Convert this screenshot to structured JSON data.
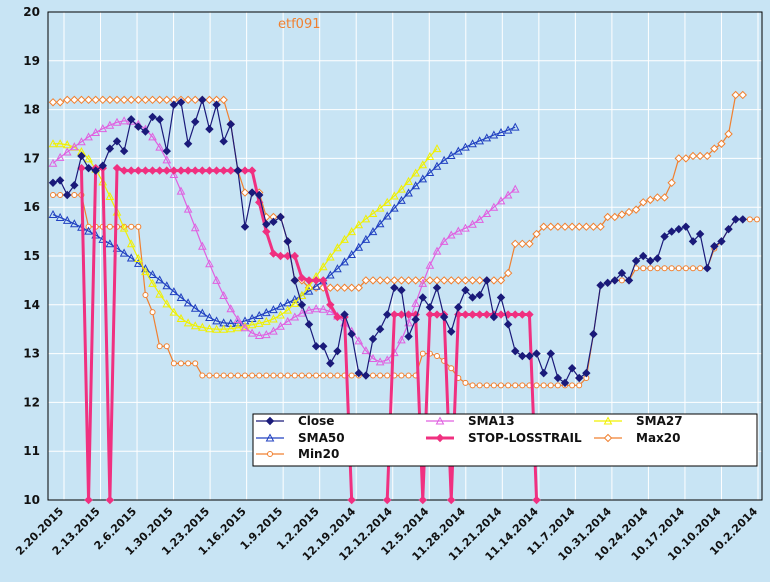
{
  "chart_data": {
    "type": "line",
    "title": "etf091",
    "ylim": [
      10,
      20
    ],
    "yticks": [
      "10",
      "11",
      "12",
      "13",
      "14",
      "15",
      "16",
      "17",
      "18",
      "19",
      "20"
    ],
    "xtick_labels": [
      "2.20.2015",
      "2.13.2015",
      "2.6.2015",
      "1.30.2015",
      "1.23.2015",
      "1.16.2015",
      "1.9.2015",
      "1.2.2015",
      "12.19.2014",
      "12.12.2014",
      "12.5.2014",
      "11.28.2014",
      "11.21.2014",
      "11.14.2014",
      "11.7.2014",
      "10.31.2014",
      "10.24.2014",
      "10.17.2014",
      "10.10.2014",
      "10.2.2014"
    ],
    "n_points": 100,
    "grid": true,
    "legend_position": "bottom-right",
    "series": [
      {
        "name": "Close",
        "color": "#1a1a7a",
        "marker": "diamond",
        "values": [
          16.5,
          16.55,
          16.25,
          16.45,
          17.05,
          16.8,
          16.75,
          16.85,
          17.2,
          17.35,
          17.15,
          17.8,
          17.65,
          17.55,
          17.85,
          17.8,
          17.15,
          18.1,
          18.15,
          17.3,
          17.75,
          18.2,
          17.6,
          18.1,
          17.35,
          17.7,
          16.75,
          15.6,
          16.3,
          16.25,
          15.65,
          15.7,
          15.8,
          15.3,
          14.5,
          14.0,
          13.6,
          13.15,
          13.15,
          12.8,
          13.05,
          13.8,
          13.4,
          12.6,
          12.55,
          13.3,
          13.5,
          13.8,
          14.35,
          14.3,
          13.35,
          13.7,
          14.15,
          13.95,
          14.35,
          13.75,
          13.45,
          13.95,
          14.3,
          14.15,
          14.2,
          14.5,
          13.75,
          14.15,
          13.6,
          13.05,
          12.95,
          12.95,
          13.0,
          12.6,
          13.0,
          12.5,
          12.4,
          12.7,
          12.5,
          12.6,
          13.4,
          14.4,
          14.45,
          14.5,
          14.65,
          14.5,
          14.9,
          15.0,
          14.9,
          14.95,
          15.4,
          15.5,
          15.55,
          15.6,
          15.3,
          15.45,
          14.75,
          15.2,
          15.3,
          15.55,
          15.75,
          15.75
        ]
      },
      {
        "name": "SMA13",
        "color": "#e060e0",
        "marker": "triangle",
        "values": [
          16.9,
          17.02,
          17.13,
          17.24,
          17.34,
          17.44,
          17.53,
          17.61,
          17.68,
          17.74,
          17.77,
          17.76,
          17.7,
          17.6,
          17.44,
          17.23,
          16.97,
          16.67,
          16.33,
          15.96,
          15.58,
          15.2,
          14.84,
          14.5,
          14.19,
          13.92,
          13.7,
          13.53,
          13.42,
          13.37,
          13.39,
          13.46,
          13.56,
          13.66,
          13.75,
          13.83,
          13.89,
          13.92,
          13.91,
          13.86,
          13.77,
          13.63,
          13.46,
          13.26,
          13.06,
          12.9,
          12.83,
          12.87,
          13.02,
          13.28,
          13.63,
          14.03,
          14.44,
          14.81,
          15.1,
          15.3,
          15.43,
          15.51,
          15.57,
          15.65,
          15.75,
          15.87,
          16.0,
          16.13,
          16.25,
          16.37
        ]
      },
      {
        "name": "SMA27",
        "color": "#f0f000",
        "marker": "triangle",
        "values": [
          17.3,
          17.3,
          17.28,
          17.23,
          17.14,
          16.99,
          16.78,
          16.52,
          16.22,
          15.9,
          15.57,
          15.25,
          14.95,
          14.68,
          14.44,
          14.22,
          14.02,
          13.85,
          13.72,
          13.63,
          13.57,
          13.54,
          13.51,
          13.5,
          13.5,
          13.51,
          13.53,
          13.56,
          13.59,
          13.62,
          13.66,
          13.71,
          13.79,
          13.89,
          14.03,
          14.19,
          14.38,
          14.58,
          14.78,
          14.98,
          15.17,
          15.34,
          15.5,
          15.64,
          15.76,
          15.87,
          15.98,
          16.1,
          16.23,
          16.37,
          16.53,
          16.7,
          16.87,
          17.04,
          17.2
        ]
      },
      {
        "name": "SMA50",
        "color": "#2040c0",
        "marker": "triangle",
        "values": [
          15.85,
          15.79,
          15.73,
          15.66,
          15.59,
          15.51,
          15.43,
          15.34,
          15.25,
          15.16,
          15.06,
          14.96,
          14.85,
          14.74,
          14.62,
          14.51,
          14.39,
          14.27,
          14.15,
          14.04,
          13.93,
          13.83,
          13.74,
          13.67,
          13.63,
          13.62,
          13.63,
          13.67,
          13.72,
          13.78,
          13.84,
          13.9,
          13.97,
          14.04,
          14.11,
          14.19,
          14.28,
          14.38,
          14.49,
          14.61,
          14.74,
          14.88,
          15.03,
          15.18,
          15.34,
          15.5,
          15.66,
          15.82,
          15.98,
          16.14,
          16.29,
          16.44,
          16.58,
          16.71,
          16.84,
          16.96,
          17.06,
          17.15,
          17.23,
          17.3,
          17.36,
          17.42,
          17.48,
          17.53,
          17.58,
          17.64
        ]
      },
      {
        "name": "Max20",
        "color": "#f08030",
        "marker": "diamond",
        "values": [
          18.15,
          18.15,
          18.2,
          18.2,
          18.2,
          18.2,
          18.2,
          18.2,
          18.2,
          18.2,
          18.2,
          18.2,
          18.2,
          18.2,
          18.2,
          18.2,
          18.2,
          18.2,
          18.2,
          18.2,
          18.2,
          18.2,
          18.2,
          18.2,
          18.2,
          17.7,
          16.75,
          16.3,
          16.3,
          16.3,
          15.8,
          15.8,
          15.8,
          15.3,
          14.5,
          14.5,
          14.35,
          14.35,
          14.35,
          14.35,
          14.35,
          14.35,
          14.35,
          14.35,
          14.5,
          14.5,
          14.5,
          14.5,
          14.5,
          14.5,
          14.5,
          14.5,
          14.5,
          14.5,
          14.5,
          14.5,
          14.5,
          14.5,
          14.5,
          14.5,
          14.5,
          14.5,
          14.5,
          14.5,
          14.65,
          15.25,
          15.25,
          15.25,
          15.45,
          15.6,
          15.6,
          15.6,
          15.6,
          15.6,
          15.6,
          15.6,
          15.6,
          15.6,
          15.8,
          15.8,
          15.85,
          15.9,
          15.95,
          16.1,
          16.15,
          16.2,
          16.2,
          16.5,
          17.0,
          17.0,
          17.05,
          17.05,
          17.05,
          17.2,
          17.3,
          17.5,
          18.3,
          18.3
        ]
      },
      {
        "name": "Min20",
        "color": "#f08030",
        "marker": "circle",
        "values": [
          16.25,
          16.25,
          16.25,
          16.25,
          16.25,
          15.6,
          15.6,
          15.6,
          15.6,
          15.6,
          15.6,
          15.6,
          15.6,
          14.2,
          13.85,
          13.15,
          13.15,
          12.8,
          12.8,
          12.8,
          12.8,
          12.55,
          12.55,
          12.55,
          12.55,
          12.55,
          12.55,
          12.55,
          12.55,
          12.55,
          12.55,
          12.55,
          12.55,
          12.55,
          12.55,
          12.55,
          12.55,
          12.55,
          12.55,
          12.55,
          12.55,
          12.55,
          12.55,
          12.55,
          12.55,
          12.55,
          12.55,
          12.55,
          12.55,
          12.55,
          12.55,
          12.55,
          13.0,
          13.0,
          12.95,
          12.85,
          12.7,
          12.5,
          12.4,
          12.35,
          12.35,
          12.35,
          12.35,
          12.35,
          12.35,
          12.35,
          12.35,
          12.35,
          12.35,
          12.35,
          12.35,
          12.35,
          12.35,
          12.35,
          12.35,
          12.5,
          13.4,
          14.4,
          14.45,
          14.5,
          14.5,
          14.5,
          14.75,
          14.75,
          14.75,
          14.75,
          14.75,
          14.75,
          14.75,
          14.75,
          14.75,
          14.75,
          14.75,
          15.15,
          15.3,
          15.55,
          15.75,
          15.75,
          15.75,
          15.75
        ]
      },
      {
        "name": "STOP-LOSSTRAIL",
        "color": "#f03080",
        "marker": "diamond",
        "segments": [
          {
            "start": 4,
            "values": [
              16.8,
              10,
              16.8,
              16.8,
              10,
              16.8,
              16.75,
              16.75,
              16.75,
              16.75,
              16.75,
              16.75,
              16.75,
              16.75,
              16.75,
              16.75,
              16.75,
              16.75,
              16.75,
              16.75,
              16.75,
              16.75,
              16.75,
              16.75,
              16.75,
              16.1,
              15.5,
              15.05,
              15.0,
              15.0,
              15.0,
              14.55,
              14.5,
              14.5,
              14.5,
              14.0,
              13.75,
              13.75,
              10
            ]
          },
          {
            "start": 47,
            "values": [
              10,
              13.8,
              13.8,
              13.8,
              13.8,
              10,
              13.8,
              13.8,
              13.8,
              10,
              13.8,
              13.8,
              13.8,
              13.8,
              13.8,
              13.8,
              13.8,
              13.8,
              13.8,
              13.8,
              13.8,
              10
            ]
          }
        ]
      }
    ]
  }
}
